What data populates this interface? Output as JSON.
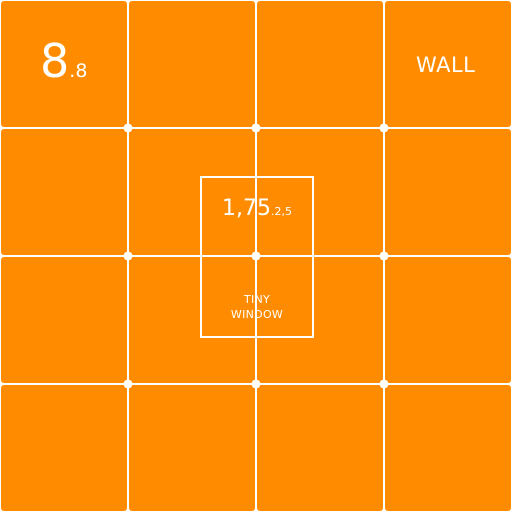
{
  "colors": {
    "tile": "#ff8c00",
    "background": "#ffffff",
    "text": "#ffffff"
  },
  "wall": {
    "number_major": "8",
    "number_minor": ".8",
    "label": "WALL"
  },
  "window": {
    "number_major": "1,75",
    "number_minor": ".2,5",
    "label_line1": "TINY",
    "label_line2": "WINDOW"
  }
}
